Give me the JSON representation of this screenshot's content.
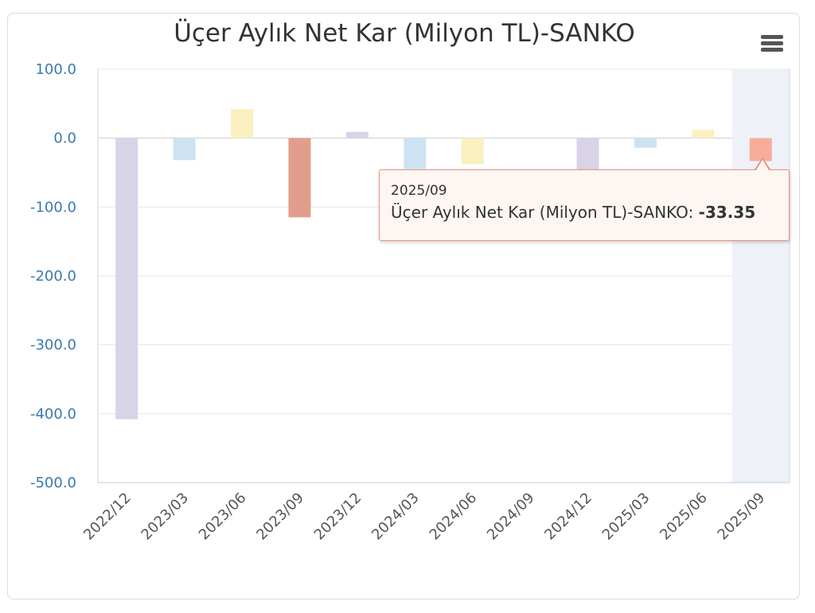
{
  "chart_data": {
    "type": "bar",
    "title": "Üçer Aylık Net Kar (Milyon TL)-SANKO",
    "xlabel": "",
    "ylabel": "",
    "ylim": [
      -500,
      100
    ],
    "yticks": [
      100,
      0,
      -100,
      -200,
      -300,
      -400,
      -500
    ],
    "ytick_labels": [
      "100.0",
      "0.0",
      "-100.0",
      "-200.0",
      "-300.0",
      "-400.0",
      "-500.0"
    ],
    "categories": [
      "2022/12",
      "2023/03",
      "2023/06",
      "2023/09",
      "2023/12",
      "2024/03",
      "2024/06",
      "2024/09",
      "2024/12",
      "2025/03",
      "2025/06",
      "2025/09"
    ],
    "values": [
      -408,
      -32,
      42,
      -115,
      9,
      -45,
      -38,
      0,
      -82,
      -14,
      12,
      -33.35
    ],
    "bar_colors": [
      "#d8d3e6",
      "#cde3f1",
      "#faf0c0",
      "#e29e8c",
      "#d8d3e6",
      "#cde3f1",
      "#faf0c0",
      "#e29e8c",
      "#d8d3e6",
      "#cde3f1",
      "#faf0c0",
      "#f7ad9a"
    ],
    "highlight_index": 11,
    "grid": true,
    "legend": "none"
  },
  "tooltip": {
    "date": "2025/09",
    "series_label": "Üçer Aylık Net Kar (Milyon TL)-SANKO:",
    "value": "-33.35"
  },
  "menu": {
    "icon": "hamburger-menu-icon"
  }
}
